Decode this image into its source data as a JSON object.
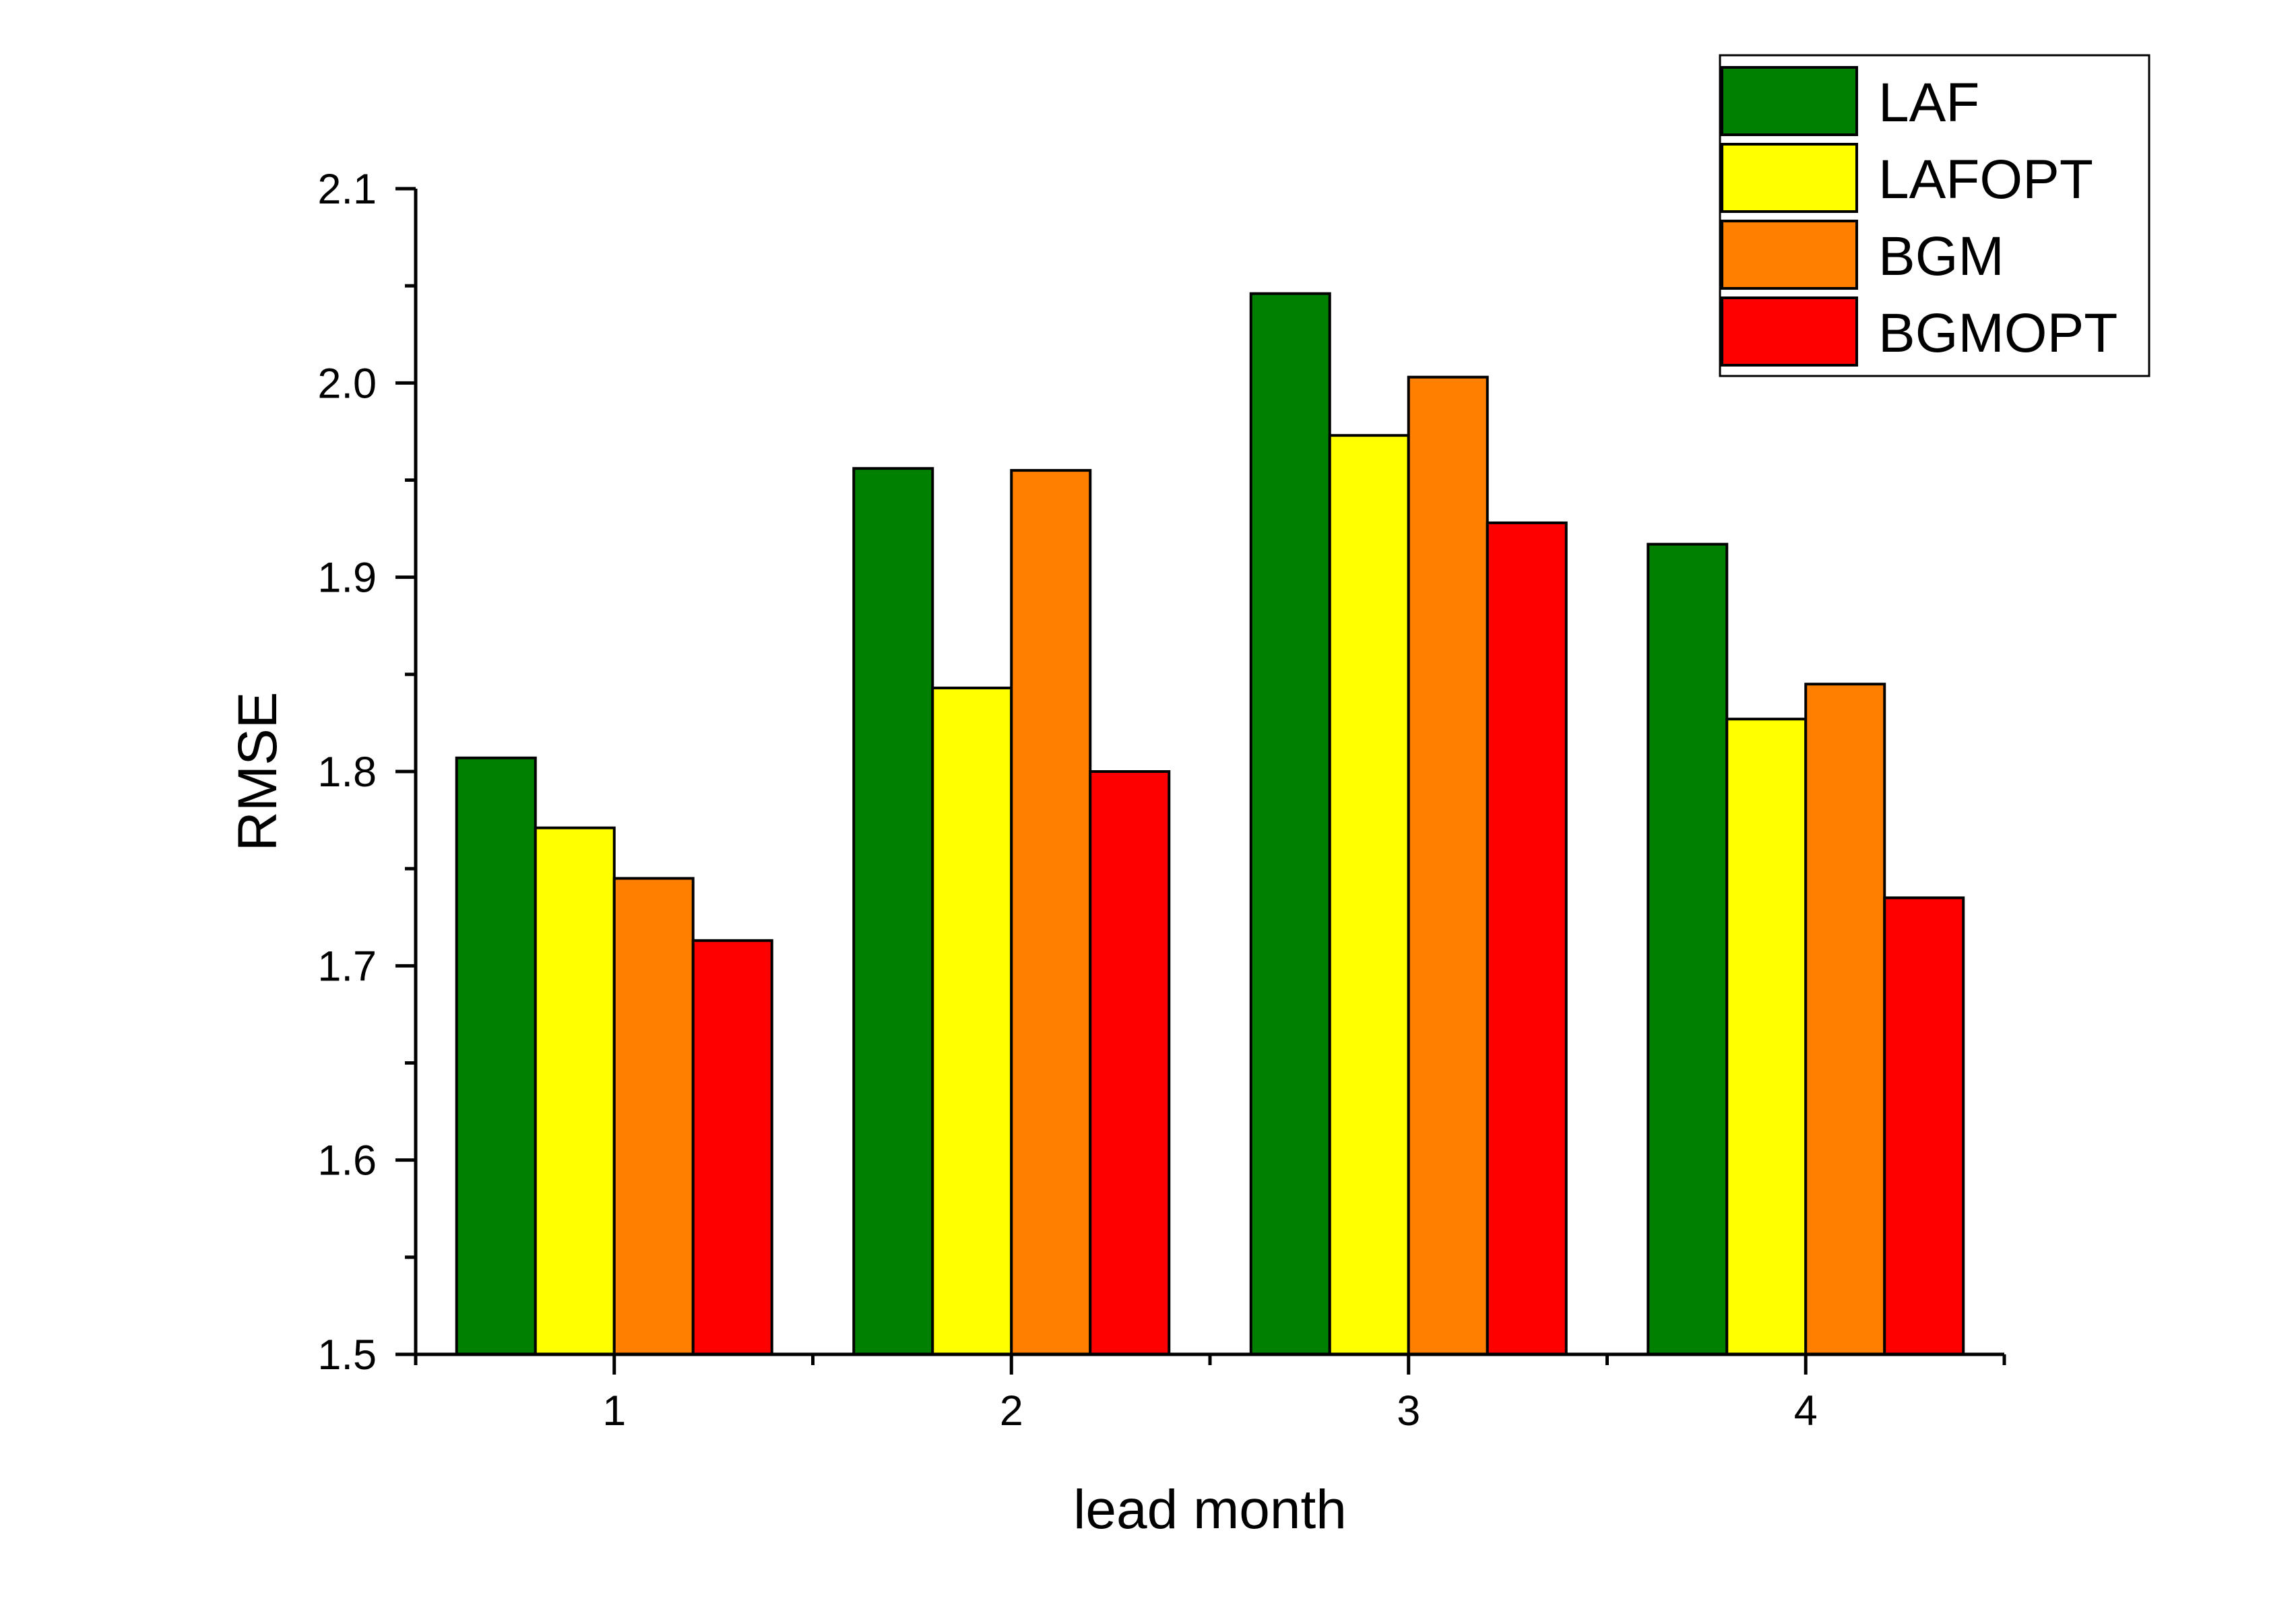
{
  "chart_data": {
    "type": "bar",
    "title": "",
    "xlabel": "lead month",
    "ylabel": "RMSE",
    "categories": [
      "1",
      "2",
      "3",
      "4"
    ],
    "series": [
      {
        "name": "LAF",
        "color": "#008000",
        "values": [
          1.807,
          1.956,
          2.046,
          1.917
        ]
      },
      {
        "name": "LAFOPT",
        "color": "#ffff00",
        "values": [
          1.771,
          1.843,
          1.973,
          1.827
        ]
      },
      {
        "name": "BGM",
        "color": "#ff8000",
        "values": [
          1.745,
          1.955,
          2.003,
          1.845
        ]
      },
      {
        "name": "BGMOPT",
        "color": "#ff0000",
        "values": [
          1.713,
          1.8,
          1.928,
          1.735
        ]
      }
    ],
    "ylim": [
      1.5,
      2.1
    ],
    "yticks": [
      "1.5",
      "1.6",
      "1.7",
      "1.8",
      "1.9",
      "2.0",
      "2.1"
    ],
    "grid": false,
    "legend_position": "top-right"
  }
}
